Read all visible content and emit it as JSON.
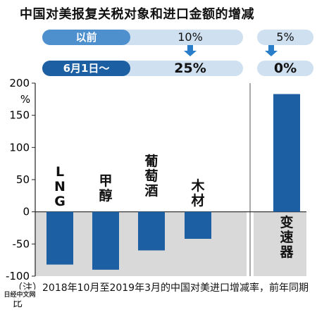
{
  "title": "中国对美报复关税对象和进口金额的增减",
  "tariffs": {
    "before_label": "以前",
    "after_label": "6月1日～",
    "main_before": "10%",
    "main_after": "25%",
    "transmission_before": "5%",
    "transmission_after": "0%"
  },
  "chart_data": {
    "type": "bar",
    "categories": [
      "LNG",
      "甲醇",
      "葡萄酒",
      "木材",
      "变速器"
    ],
    "values": [
      -82,
      -90,
      -60,
      -42,
      183
    ],
    "title": "",
    "xlabel": "",
    "ylabel": "%",
    "ylim": [
      -100,
      200
    ],
    "yticks": [
      200,
      150,
      100,
      50,
      0,
      -50,
      -100
    ],
    "grid": false,
    "bar_color": "#1c5fa3",
    "negative_area_color": "#d9d9d9"
  },
  "note": "（注）2018年10月至2019年3月的中国对美进口增减率，前年同期比",
  "watermark": "日经中文网",
  "colors": {
    "bar": "#1c5fa3",
    "pill_light": "#cfe0f0",
    "tag_light": "#4e8fcd",
    "tag_dark": "#1c5fa3",
    "arrow": "#2a7dc8"
  }
}
